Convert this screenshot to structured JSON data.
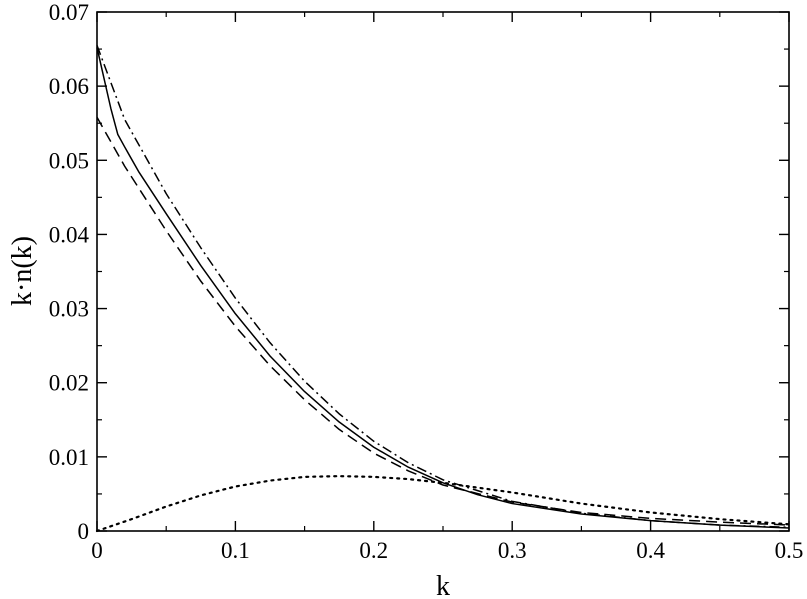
{
  "chart_data": {
    "type": "line",
    "xlabel": "k",
    "ylabel": "k·n(k)",
    "xlim": [
      0,
      0.5
    ],
    "ylim": [
      0,
      0.07
    ],
    "xticks": [
      0,
      0.1,
      0.2,
      0.3,
      0.4,
      0.5
    ],
    "xtick_labels": [
      "0",
      "0.1",
      "0.2",
      "0.3",
      "0.4",
      "0.5"
    ],
    "yticks": [
      0,
      0.01,
      0.02,
      0.03,
      0.04,
      0.05,
      0.06,
      0.07
    ],
    "ytick_labels": [
      "0",
      "0.01",
      "0.02",
      "0.03",
      "0.04",
      "0.05",
      "0.06",
      "0.07"
    ],
    "grid": false,
    "legend": "none",
    "series": [
      {
        "style": "solid",
        "x": [
          0,
          0.01,
          0.015,
          0.02,
          0.03,
          0.05,
          0.075,
          0.1,
          0.125,
          0.15,
          0.175,
          0.2,
          0.225,
          0.25,
          0.275,
          0.3,
          0.35,
          0.4,
          0.45,
          0.5
        ],
        "y": [
          0.0652,
          0.057,
          0.0535,
          0.0518,
          0.0485,
          0.0428,
          0.0358,
          0.0293,
          0.0236,
          0.0188,
          0.0147,
          0.0113,
          0.0086,
          0.0065,
          0.0049,
          0.0037,
          0.0023,
          0.0014,
          0.0008,
          0.0004
        ]
      },
      {
        "style": "dashed",
        "x": [
          0,
          0.02,
          0.05,
          0.075,
          0.1,
          0.125,
          0.15,
          0.175,
          0.2,
          0.225,
          0.25,
          0.3,
          0.35,
          0.4,
          0.45,
          0.5
        ],
        "y": [
          0.0558,
          0.0492,
          0.0405,
          0.0337,
          0.0276,
          0.0223,
          0.0177,
          0.0137,
          0.0105,
          0.0081,
          0.0062,
          0.0039,
          0.0025,
          0.0017,
          0.0012,
          0.0008
        ]
      },
      {
        "style": "dashdot",
        "x": [
          0,
          0.02,
          0.05,
          0.075,
          0.1,
          0.125,
          0.15,
          0.175,
          0.2,
          0.225,
          0.25,
          0.3,
          0.35,
          0.4,
          0.45,
          0.5
        ],
        "y": [
          0.0655,
          0.0555,
          0.0455,
          0.0382,
          0.0314,
          0.0254,
          0.0202,
          0.0158,
          0.0121,
          0.0092,
          0.0069,
          0.004,
          0.0024,
          0.0014,
          0.0008,
          0.0005
        ]
      },
      {
        "style": "dotted",
        "x": [
          0,
          0.025,
          0.05,
          0.075,
          0.1,
          0.125,
          0.15,
          0.175,
          0.2,
          0.225,
          0.25,
          0.3,
          0.35,
          0.4,
          0.45,
          0.5
        ],
        "y": [
          0,
          0.0016,
          0.0033,
          0.0048,
          0.006,
          0.0068,
          0.0073,
          0.0074,
          0.0073,
          0.007,
          0.0065,
          0.0052,
          0.0037,
          0.0025,
          0.0016,
          0.0009
        ]
      }
    ]
  }
}
